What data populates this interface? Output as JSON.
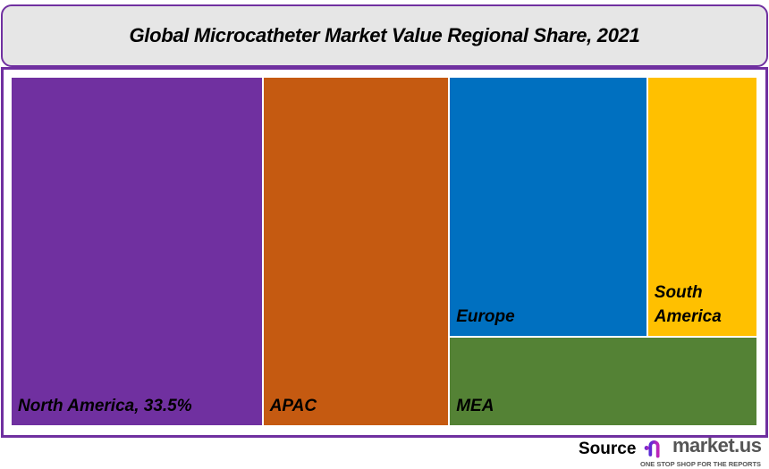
{
  "chart_data": {
    "type": "treemap",
    "title": "Global Microcatheter Market Value Regional Share, 2021",
    "items": [
      {
        "name": "North America",
        "label": "North America, 33.5%",
        "value": 33.5,
        "color": "#7030a0"
      },
      {
        "name": "APAC",
        "label": "APAC",
        "value": 24.8,
        "color": "#c55a11"
      },
      {
        "name": "Europe",
        "label": "Europe",
        "value": 19.6,
        "color": "#0070c0"
      },
      {
        "name": "South America",
        "label": "South America",
        "value": 10.9,
        "color": "#ffc000"
      },
      {
        "name": "MEA",
        "label": "MEA",
        "value": 10.5,
        "color": "#548235"
      }
    ]
  },
  "footer": {
    "source_label": "Source",
    "brand": "market.us",
    "tagline": "ONE STOP SHOP FOR THE REPORTS"
  },
  "colors": {
    "frame": "#7030a0",
    "title_bg": "#e6e6e6"
  }
}
